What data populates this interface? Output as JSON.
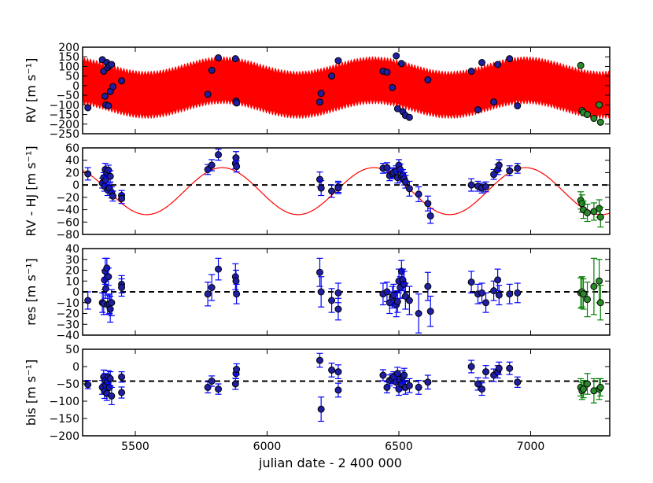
{
  "chart_data": {
    "type": "scatter",
    "xlabel": "julian date - 2 400 000",
    "xlim": [
      5300,
      7300
    ],
    "xticks": [
      5500,
      6000,
      6500,
      7000
    ],
    "colors": {
      "fit": "#ff0000",
      "blue_point": "#1f1fa0",
      "blue_err": "#0000ff",
      "green_point": "#2a8a2a",
      "green_err": "#008000",
      "zero_line": "#000000"
    },
    "panels": [
      {
        "id": "rv",
        "ylabel": "RV [m s⁻¹]",
        "ylim": [
          -250,
          200
        ],
        "yticks": [
          200,
          150,
          100,
          50,
          0,
          -50,
          -100,
          -150,
          -200,
          -250
        ],
        "zero_line": false,
        "model": "hot-jupiter + long-period fit (filled red band)",
        "blue": [
          [
            5320,
            -115
          ],
          [
            5375,
            135
          ],
          [
            5380,
            75
          ],
          [
            5385,
            -55
          ],
          [
            5388,
            -100
          ],
          [
            5392,
            120
          ],
          [
            5395,
            95
          ],
          [
            5398,
            -105
          ],
          [
            5402,
            105
          ],
          [
            5405,
            -30
          ],
          [
            5410,
            110
          ],
          [
            5415,
            -5
          ],
          [
            5448,
            25
          ],
          [
            5775,
            -45
          ],
          [
            5790,
            80
          ],
          [
            5815,
            145
          ],
          [
            5880,
            140
          ],
          [
            5882,
            -80
          ],
          [
            5884,
            -90
          ],
          [
            6200,
            -85
          ],
          [
            6205,
            -40
          ],
          [
            6245,
            50
          ],
          [
            6270,
            130
          ],
          [
            6440,
            75
          ],
          [
            6455,
            70
          ],
          [
            6475,
            -10
          ],
          [
            6490,
            155
          ],
          [
            6495,
            -120
          ],
          [
            6510,
            115
          ],
          [
            6515,
            -135
          ],
          [
            6525,
            -155
          ],
          [
            6540,
            -165
          ],
          [
            6610,
            30
          ],
          [
            6775,
            75
          ],
          [
            6800,
            -125
          ],
          [
            6815,
            120
          ],
          [
            6860,
            -85
          ],
          [
            6875,
            110
          ],
          [
            6920,
            140
          ],
          [
            6950,
            -105
          ]
        ],
        "green": [
          [
            7190,
            105
          ],
          [
            7195,
            -130
          ],
          [
            7200,
            -140
          ],
          [
            7215,
            -150
          ],
          [
            7240,
            -170
          ],
          [
            7260,
            -100
          ],
          [
            7265,
            -190
          ]
        ]
      },
      {
        "id": "rv_hj",
        "ylabel": "RV - HJ [m s⁻¹]",
        "ylim": [
          -80,
          60
        ],
        "yticks": [
          60,
          40,
          20,
          0,
          -20,
          -40,
          -60,
          -80
        ],
        "zero_line": true,
        "model_curve": {
          "amplitude": 38,
          "offset": -10,
          "period": 575,
          "phase_peak": 5830
        },
        "blue": [
          [
            5320,
            18,
            10
          ],
          [
            5375,
            3,
            8
          ],
          [
            5380,
            12,
            8
          ],
          [
            5383,
            -2,
            8
          ],
          [
            5386,
            25,
            10
          ],
          [
            5388,
            8,
            9
          ],
          [
            5392,
            20,
            8
          ],
          [
            5395,
            -8,
            9
          ],
          [
            5398,
            24,
            8
          ],
          [
            5402,
            -5,
            8
          ],
          [
            5405,
            14,
            9
          ],
          [
            5410,
            -12,
            9
          ],
          [
            5415,
            -18,
            8
          ],
          [
            5448,
            -17,
            8
          ],
          [
            5448,
            -22,
            8
          ],
          [
            5775,
            25,
            8
          ],
          [
            5790,
            32,
            9
          ],
          [
            5815,
            49,
            9
          ],
          [
            5880,
            35,
            9
          ],
          [
            5882,
            44,
            10
          ],
          [
            5884,
            30,
            9
          ],
          [
            6200,
            9,
            12
          ],
          [
            6205,
            -5,
            12
          ],
          [
            6245,
            -10,
            10
          ],
          [
            6270,
            -3,
            9
          ],
          [
            6270,
            -5,
            9
          ],
          [
            6440,
            27,
            8
          ],
          [
            6455,
            28,
            8
          ],
          [
            6465,
            15,
            8
          ],
          [
            6475,
            18,
            8
          ],
          [
            6480,
            20,
            8
          ],
          [
            6490,
            22,
            9
          ],
          [
            6495,
            12,
            9
          ],
          [
            6500,
            32,
            9
          ],
          [
            6505,
            25,
            9
          ],
          [
            6510,
            14,
            9
          ],
          [
            6515,
            16,
            9
          ],
          [
            6520,
            10,
            10
          ],
          [
            6525,
            5,
            10
          ],
          [
            6540,
            -6,
            12
          ],
          [
            6575,
            -15,
            12
          ],
          [
            6610,
            -30,
            12
          ],
          [
            6620,
            -50,
            12
          ],
          [
            6775,
            0,
            10
          ],
          [
            6800,
            -2,
            8
          ],
          [
            6815,
            -5,
            8
          ],
          [
            6830,
            -3,
            8
          ],
          [
            6860,
            17,
            8
          ],
          [
            6875,
            25,
            8
          ],
          [
            6880,
            32,
            9
          ],
          [
            6920,
            23,
            8
          ],
          [
            6950,
            27,
            8
          ]
        ],
        "green": [
          [
            7190,
            -25,
            14
          ],
          [
            7195,
            -30,
            14
          ],
          [
            7200,
            -40,
            14
          ],
          [
            7215,
            -45,
            14
          ],
          [
            7240,
            -43,
            14
          ],
          [
            7260,
            -38,
            14
          ],
          [
            7265,
            -52,
            16
          ]
        ]
      },
      {
        "id": "res",
        "ylabel": "res [m s⁻¹]",
        "ylim": [
          -40,
          40
        ],
        "yticks": [
          40,
          30,
          20,
          10,
          0,
          -10,
          -20,
          -30,
          -40
        ],
        "zero_line": true,
        "blue": [
          [
            5320,
            -8,
            8
          ],
          [
            5375,
            -10,
            9
          ],
          [
            5380,
            -11,
            10
          ],
          [
            5383,
            11,
            9
          ],
          [
            5386,
            19,
            12
          ],
          [
            5388,
            3,
            9
          ],
          [
            5392,
            22,
            9
          ],
          [
            5395,
            -12,
            9
          ],
          [
            5398,
            14,
            8
          ],
          [
            5402,
            -11,
            9
          ],
          [
            5405,
            -16,
            12
          ],
          [
            5410,
            -10,
            12
          ],
          [
            5448,
            7,
            8
          ],
          [
            5448,
            4,
            8
          ],
          [
            5775,
            -2,
            11
          ],
          [
            5790,
            4,
            12
          ],
          [
            5815,
            21,
            10
          ],
          [
            5880,
            14,
            12
          ],
          [
            5882,
            10,
            10
          ],
          [
            5884,
            -2,
            9
          ],
          [
            6200,
            18,
            13
          ],
          [
            6205,
            0,
            14
          ],
          [
            6245,
            -8,
            11
          ],
          [
            6270,
            -1,
            9
          ],
          [
            6270,
            -16,
            10
          ],
          [
            6440,
            -2,
            10
          ],
          [
            6455,
            0,
            9
          ],
          [
            6465,
            -10,
            10
          ],
          [
            6475,
            -5,
            10
          ],
          [
            6480,
            -3,
            10
          ],
          [
            6490,
            -12,
            11
          ],
          [
            6495,
            -9,
            10
          ],
          [
            6500,
            10,
            11
          ],
          [
            6505,
            4,
            10
          ],
          [
            6510,
            19,
            10
          ],
          [
            6515,
            11,
            10
          ],
          [
            6520,
            7,
            12
          ],
          [
            6525,
            -4,
            12
          ],
          [
            6540,
            -8,
            13
          ],
          [
            6575,
            -20,
            18
          ],
          [
            6610,
            5,
            13
          ],
          [
            6620,
            -18,
            14
          ],
          [
            6775,
            9,
            10
          ],
          [
            6800,
            -2,
            9
          ],
          [
            6815,
            -1,
            9
          ],
          [
            6830,
            -10,
            9
          ],
          [
            6860,
            1,
            9
          ],
          [
            6875,
            11,
            10
          ],
          [
            6880,
            -3,
            9
          ],
          [
            6920,
            -2,
            9
          ],
          [
            6950,
            -1,
            9
          ]
        ],
        "green": [
          [
            7190,
            -1,
            14
          ],
          [
            7195,
            0,
            14
          ],
          [
            7200,
            -2,
            14
          ],
          [
            7215,
            -7,
            16
          ],
          [
            7240,
            5,
            26
          ],
          [
            7260,
            10,
            20
          ],
          [
            7265,
            -10,
            16
          ]
        ]
      },
      {
        "id": "bis",
        "ylabel": "bis [m s⁻¹]",
        "ylim": [
          -200,
          50
        ],
        "yticks": [
          50,
          0,
          -50,
          -100,
          -150,
          -200
        ],
        "zero_line": true,
        "zero_value": -42,
        "blue": [
          [
            5320,
            -52,
            12
          ],
          [
            5375,
            -60,
            20
          ],
          [
            5380,
            -30,
            20
          ],
          [
            5383,
            -72,
            20
          ],
          [
            5386,
            -40,
            20
          ],
          [
            5388,
            -55,
            18
          ],
          [
            5392,
            -78,
            20
          ],
          [
            5395,
            -45,
            20
          ],
          [
            5398,
            -30,
            18
          ],
          [
            5402,
            -60,
            22
          ],
          [
            5405,
            -35,
            20
          ],
          [
            5410,
            -85,
            25
          ],
          [
            5448,
            -30,
            15
          ],
          [
            5448,
            -75,
            16
          ],
          [
            5775,
            -60,
            16
          ],
          [
            5790,
            -42,
            15
          ],
          [
            5815,
            -65,
            15
          ],
          [
            5880,
            -50,
            16
          ],
          [
            5882,
            -20,
            15
          ],
          [
            5884,
            -8,
            16
          ],
          [
            6200,
            18,
            20
          ],
          [
            6205,
            -123,
            35
          ],
          [
            6245,
            -10,
            20
          ],
          [
            6270,
            -68,
            20
          ],
          [
            6270,
            -15,
            20
          ],
          [
            6440,
            -25,
            16
          ],
          [
            6455,
            -60,
            16
          ],
          [
            6465,
            -40,
            16
          ],
          [
            6475,
            -35,
            15
          ],
          [
            6480,
            -30,
            15
          ],
          [
            6490,
            -45,
            16
          ],
          [
            6495,
            -20,
            18
          ],
          [
            6500,
            -65,
            18
          ],
          [
            6505,
            -40,
            18
          ],
          [
            6510,
            -50,
            18
          ],
          [
            6515,
            -30,
            18
          ],
          [
            6520,
            -25,
            20
          ],
          [
            6525,
            -60,
            20
          ],
          [
            6540,
            -55,
            20
          ],
          [
            6575,
            -60,
            20
          ],
          [
            6610,
            -45,
            20
          ],
          [
            6775,
            0,
            18
          ],
          [
            6800,
            -50,
            18
          ],
          [
            6815,
            -65,
            18
          ],
          [
            6830,
            -15,
            18
          ],
          [
            6860,
            -25,
            18
          ],
          [
            6875,
            -15,
            18
          ],
          [
            6880,
            -5,
            18
          ],
          [
            6920,
            -5,
            18
          ],
          [
            6950,
            -45,
            15
          ]
        ],
        "green": [
          [
            7190,
            -60,
            25
          ],
          [
            7195,
            -70,
            25
          ],
          [
            7200,
            -65,
            25
          ],
          [
            7215,
            -50,
            30
          ],
          [
            7240,
            -70,
            35
          ],
          [
            7260,
            -65,
            30
          ],
          [
            7265,
            -60,
            25
          ]
        ]
      }
    ]
  }
}
